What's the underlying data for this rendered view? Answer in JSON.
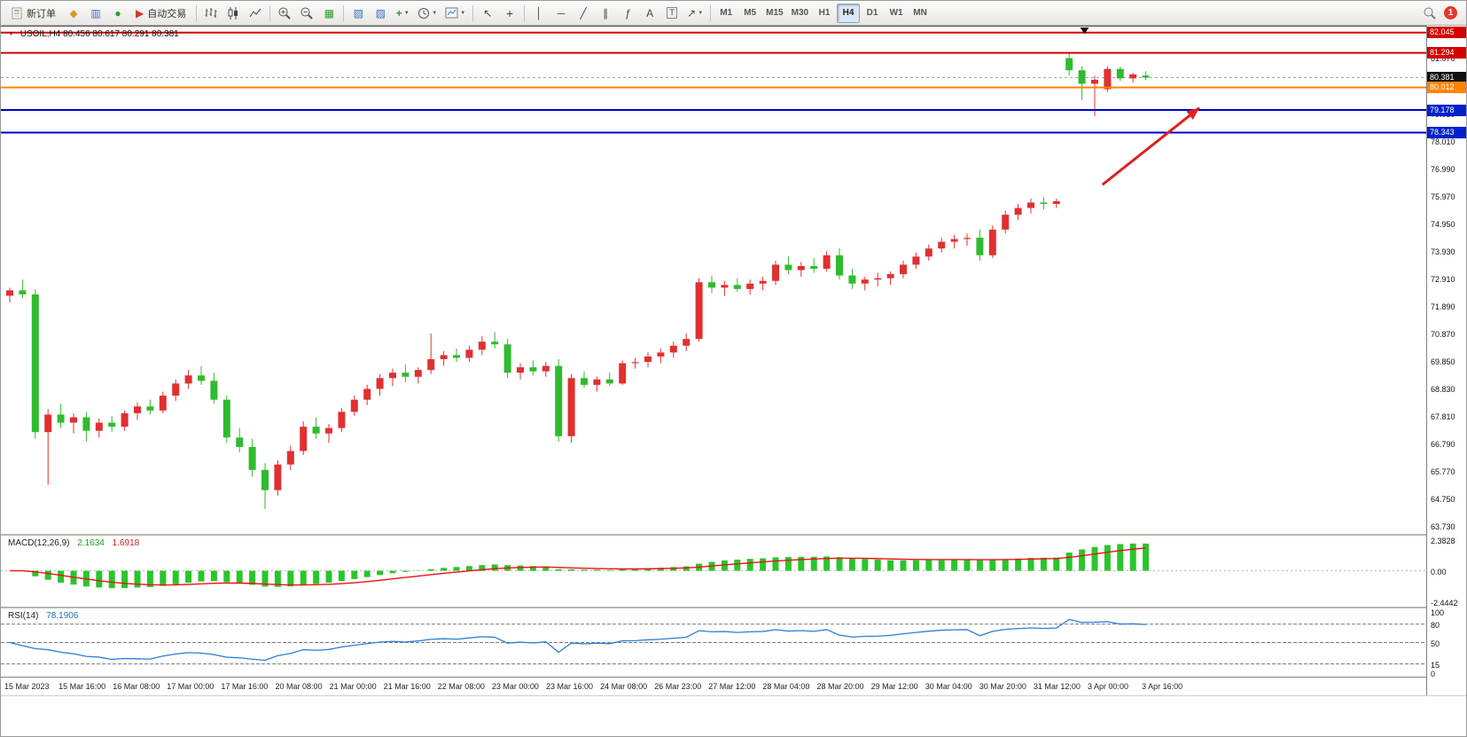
{
  "toolbar": {
    "new_order_label": "新订单",
    "autotrading_label": "自动交易",
    "timeframes": [
      "M1",
      "M5",
      "M15",
      "M30",
      "H1",
      "H4",
      "D1",
      "W1",
      "MN"
    ],
    "active_timeframe": "H4",
    "notification_count": "1"
  },
  "chart_header": {
    "title": "USOIL,H4  80.456 80.617 80.291 80.381"
  },
  "indicators": {
    "macd": {
      "label": "MACD(12,26,9)",
      "value1": "2.1634",
      "value2": "1.6918",
      "scale": [
        "2.3828",
        "0.00",
        "-2.4442"
      ]
    },
    "rsi": {
      "label": "RSI(14)",
      "value": "78.1906",
      "scale": [
        "100",
        "80",
        "50",
        "15",
        "0"
      ]
    }
  },
  "icons": {
    "market-watch": "◆",
    "data-window": "▥",
    "navigator": "●",
    "autotrading": "▶",
    "tile-windows": "▦",
    "arrange-windows": "▧",
    "cascade-windows": "▨",
    "add-indicator": "+",
    "cursor": "↖",
    "crosshair": "+",
    "vertical-line": "│",
    "horizontal-line": "─",
    "trendline": "╱",
    "channel": "∥",
    "fibonacci": "ƒ",
    "text-tool": "A",
    "label-tool": "T",
    "shapes": "↗",
    "dropdown": "▼",
    "symbol-marker": "▼"
  },
  "chart_data": [
    {
      "id": "main",
      "type": "candlestick",
      "symbol": "USOIL",
      "timeframe": "H4",
      "up_color": "#e03030",
      "down_color": "#2fbb2f",
      "current_price": 80.381,
      "price_axis": {
        "min": 63.48,
        "max": 82.3,
        "ticks": [
          "81.070",
          "79.030",
          "78.010",
          "76.990",
          "75.970",
          "74.950",
          "73.930",
          "72.910",
          "71.890",
          "70.870",
          "69.850",
          "68.830",
          "67.810",
          "66.790",
          "65.770",
          "64.750",
          "63.730"
        ],
        "badges": [
          {
            "label": "82.045",
            "bg": "#d40000"
          },
          {
            "label": "81.294",
            "bg": "#d40000"
          },
          {
            "label": "80.381",
            "bg": "#111111"
          },
          {
            "label": "80.012",
            "bg": "#ff8400"
          },
          {
            "label": "79.178",
            "bg": "#0022cc"
          },
          {
            "label": "78.343",
            "bg": "#0022cc"
          }
        ]
      },
      "hlines": [
        {
          "price": 82.045,
          "color": "#d40000"
        },
        {
          "price": 81.294,
          "color": "#d40000"
        },
        {
          "price": 80.012,
          "color": "#ff8400"
        },
        {
          "price": 79.178,
          "color": "#0000cc"
        },
        {
          "price": 78.343,
          "color": "#0000cc"
        }
      ],
      "arrow": {
        "from": {
          "bar": 85.6,
          "price": 76.41
        },
        "to": {
          "bar": 93.2,
          "price": 79.26
        },
        "color": "#e02020"
      },
      "top_marker": {
        "bar": 84.2
      },
      "x_labels": [
        "15 Mar 2023",
        "15 Mar 16:00",
        "16 Mar 08:00",
        "17 Mar 00:00",
        "17 Mar 16:00",
        "20 Mar 08:00",
        "21 Mar 00:00",
        "21 Mar 16:00",
        "22 Mar 08:00",
        "23 Mar 00:00",
        "23 Mar 16:00",
        "24 Mar 08:00",
        "26 Mar 23:00",
        "27 Mar 12:00",
        "28 Mar 04:00",
        "28 Mar 20:00",
        "29 Mar 12:00",
        "30 Mar 04:00",
        "30 Mar 20:00",
        "31 Mar 12:00",
        "3 Apr 00:00",
        "3 Apr 16:00"
      ],
      "ohlc": [
        [
          72.3,
          72.6,
          72.05,
          72.5
        ],
        [
          72.5,
          72.9,
          72.2,
          72.35
        ],
        [
          72.35,
          72.55,
          67.0,
          67.25
        ],
        [
          67.25,
          68.1,
          65.3,
          67.9
        ],
        [
          67.9,
          68.3,
          67.4,
          67.6
        ],
        [
          67.6,
          67.95,
          67.2,
          67.8
        ],
        [
          67.8,
          68.0,
          66.9,
          67.3
        ],
        [
          67.3,
          67.75,
          67.05,
          67.6
        ],
        [
          67.6,
          67.85,
          67.25,
          67.45
        ],
        [
          67.45,
          68.05,
          67.3,
          67.95
        ],
        [
          67.95,
          68.35,
          67.7,
          68.2
        ],
        [
          68.2,
          68.45,
          67.9,
          68.05
        ],
        [
          68.05,
          68.75,
          67.95,
          68.6
        ],
        [
          68.6,
          69.2,
          68.4,
          69.05
        ],
        [
          69.05,
          69.55,
          68.85,
          69.35
        ],
        [
          69.35,
          69.7,
          69.0,
          69.15
        ],
        [
          69.15,
          69.45,
          68.3,
          68.45
        ],
        [
          68.45,
          68.6,
          66.85,
          67.05
        ],
        [
          67.05,
          67.4,
          66.5,
          66.7
        ],
        [
          66.7,
          67.0,
          65.6,
          65.85
        ],
        [
          65.85,
          66.1,
          64.4,
          65.1
        ],
        [
          65.1,
          66.2,
          64.9,
          66.05
        ],
        [
          66.05,
          66.75,
          65.85,
          66.55
        ],
        [
          66.55,
          67.65,
          66.4,
          67.45
        ],
        [
          67.45,
          67.8,
          67.0,
          67.2
        ],
        [
          67.2,
          67.55,
          66.85,
          67.4
        ],
        [
          67.4,
          68.15,
          67.25,
          68.0
        ],
        [
          68.0,
          68.6,
          67.85,
          68.45
        ],
        [
          68.45,
          69.0,
          68.25,
          68.85
        ],
        [
          68.85,
          69.4,
          68.6,
          69.25
        ],
        [
          69.25,
          69.6,
          68.95,
          69.45
        ],
        [
          69.45,
          69.75,
          69.1,
          69.3
        ],
        [
          69.3,
          69.65,
          69.05,
          69.55
        ],
        [
          69.55,
          70.9,
          69.4,
          69.95
        ],
        [
          69.95,
          70.25,
          69.7,
          70.1
        ],
        [
          70.1,
          70.35,
          69.85,
          70.0
        ],
        [
          70.0,
          70.45,
          69.85,
          70.3
        ],
        [
          70.3,
          70.8,
          70.1,
          70.6
        ],
        [
          70.6,
          70.95,
          70.35,
          70.5
        ],
        [
          70.5,
          70.7,
          69.25,
          69.45
        ],
        [
          69.45,
          69.8,
          69.2,
          69.65
        ],
        [
          69.65,
          69.9,
          69.35,
          69.5
        ],
        [
          69.5,
          69.85,
          69.3,
          69.7
        ],
        [
          69.7,
          69.95,
          66.9,
          67.1
        ],
        [
          67.1,
          69.4,
          66.85,
          69.25
        ],
        [
          69.25,
          69.5,
          68.9,
          69.0
        ],
        [
          69.0,
          69.3,
          68.75,
          69.2
        ],
        [
          69.2,
          69.45,
          68.95,
          69.05
        ],
        [
          69.05,
          69.9,
          69.0,
          69.8
        ],
        [
          69.82,
          70.0,
          69.6,
          69.84
        ],
        [
          69.85,
          70.2,
          69.65,
          70.05
        ],
        [
          70.05,
          70.35,
          69.8,
          70.2
        ],
        [
          70.2,
          70.6,
          70.0,
          70.45
        ],
        [
          70.45,
          70.9,
          70.25,
          70.7
        ],
        [
          70.7,
          72.95,
          70.6,
          72.8
        ],
        [
          72.8,
          73.05,
          72.4,
          72.6
        ],
        [
          72.6,
          72.85,
          72.3,
          72.7
        ],
        [
          72.7,
          72.95,
          72.45,
          72.55
        ],
        [
          72.55,
          72.9,
          72.35,
          72.75
        ],
        [
          72.75,
          73.0,
          72.5,
          72.85
        ],
        [
          72.85,
          73.6,
          72.7,
          73.45
        ],
        [
          73.45,
          73.75,
          73.1,
          73.25
        ],
        [
          73.25,
          73.55,
          73.0,
          73.4
        ],
        [
          73.4,
          73.7,
          73.15,
          73.3
        ],
        [
          73.3,
          73.95,
          73.2,
          73.8
        ],
        [
          73.8,
          74.05,
          72.9,
          73.05
        ],
        [
          73.05,
          73.3,
          72.55,
          72.75
        ],
        [
          72.75,
          73.0,
          72.5,
          72.9
        ],
        [
          72.9,
          73.15,
          72.65,
          72.95
        ],
        [
          72.95,
          73.2,
          72.7,
          73.1
        ],
        [
          73.1,
          73.6,
          72.95,
          73.45
        ],
        [
          73.45,
          73.9,
          73.3,
          73.75
        ],
        [
          73.75,
          74.2,
          73.6,
          74.05
        ],
        [
          74.05,
          74.45,
          73.9,
          74.3
        ],
        [
          74.3,
          74.55,
          74.05,
          74.4
        ],
        [
          74.42,
          74.6,
          74.15,
          74.44
        ],
        [
          74.45,
          74.75,
          73.6,
          73.8
        ],
        [
          73.8,
          74.9,
          73.7,
          74.75
        ],
        [
          74.75,
          75.45,
          74.6,
          75.3
        ],
        [
          75.3,
          75.7,
          75.1,
          75.55
        ],
        [
          75.55,
          75.9,
          75.35,
          75.75
        ],
        [
          75.75,
          75.95,
          75.5,
          75.7
        ],
        [
          75.7,
          75.9,
          75.55,
          75.8
        ],
        [
          81.1,
          81.3,
          80.45,
          80.65
        ],
        [
          80.65,
          80.8,
          79.55,
          80.15
        ],
        [
          80.15,
          80.45,
          78.95,
          80.3
        ],
        [
          79.95,
          80.8,
          79.85,
          80.7
        ],
        [
          80.7,
          80.78,
          80.25,
          80.35
        ],
        [
          80.35,
          80.55,
          80.2,
          80.5
        ],
        [
          80.456,
          80.617,
          80.291,
          80.381
        ]
      ]
    },
    {
      "id": "macd",
      "type": "bar",
      "derived_from": "main.ohlc closes",
      "fast": 12,
      "slow": 26,
      "signal": 9,
      "scale_max": 2.3828,
      "scale_min": -2.4442,
      "histogram_color": "#2cc42c",
      "signal_color": "#ee1111"
    },
    {
      "id": "rsi",
      "type": "line",
      "derived_from": "main.ohlc closes",
      "period": 14,
      "levels": [
        80,
        50,
        15
      ],
      "line_color": "#2a7fd4"
    }
  ]
}
